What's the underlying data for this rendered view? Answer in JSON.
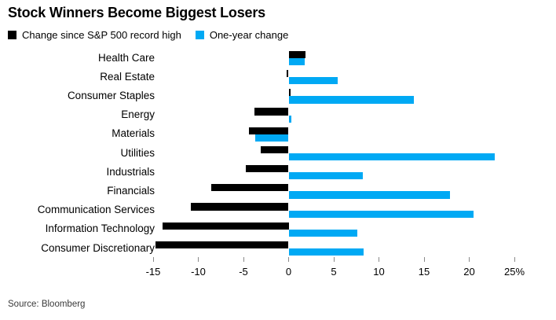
{
  "header": {
    "title": "Stock Winners Become Biggest Losers"
  },
  "chart_data": {
    "type": "bar",
    "orientation": "horizontal",
    "title": "Stock Winners Become Biggest Losers",
    "categories": [
      "Health Care",
      "Real Estate",
      "Consumer Staples",
      "Energy",
      "Materials",
      "Utilities",
      "Industrials",
      "Financials",
      "Communication Services",
      "Information Technology",
      "Consumer Discretionary"
    ],
    "series": [
      {
        "name": "Change since S&P 500 record high",
        "color": "#000000",
        "values": [
          1.9,
          -0.2,
          0.2,
          -3.8,
          -4.4,
          -3.1,
          -4.7,
          -8.6,
          -10.8,
          -14.0,
          -14.7
        ]
      },
      {
        "name": "One-year change",
        "color": "#00a9f4",
        "values": [
          1.8,
          5.4,
          13.9,
          0.3,
          -3.7,
          22.8,
          8.2,
          17.9,
          20.5,
          7.6,
          8.3
        ]
      }
    ],
    "x_ticks": [
      -15,
      -10,
      -5,
      0,
      5,
      10,
      15,
      20,
      25
    ],
    "x_tick_labels": [
      "-15",
      "-10",
      "-5",
      "0",
      "5",
      "10",
      "15",
      "20",
      "25%"
    ],
    "xlim": [
      -17,
      29
    ],
    "unit": "%",
    "grid": false,
    "legend_position": "top"
  },
  "footer": {
    "source": "Source: Bloomberg"
  }
}
